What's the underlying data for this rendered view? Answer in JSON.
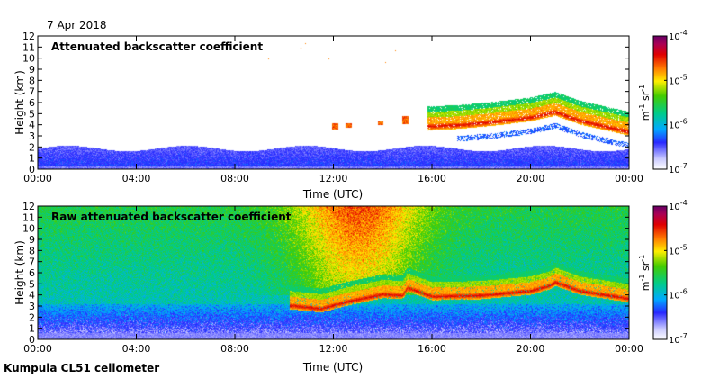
{
  "figure": {
    "date": "7 Apr 2018",
    "footer": "Kumpula CL51 ceilometer"
  },
  "chart_data": [
    {
      "type": "heatmap",
      "title": "Attenuated backscatter coefficient",
      "xlabel": "Time (UTC)",
      "ylabel": "Height (km)",
      "x_ticks": [
        "00:00",
        "04:00",
        "08:00",
        "12:00",
        "16:00",
        "20:00",
        "00:00"
      ],
      "y_ticks": [
        "0",
        "1",
        "2",
        "3",
        "4",
        "5",
        "6",
        "7",
        "8",
        "9",
        "10",
        "11",
        "12"
      ],
      "xlim_hours": [
        0,
        24
      ],
      "ylim_km": [
        0,
        12
      ],
      "colorbar": {
        "scale": "log",
        "min_label": "10-7",
        "max_label": "10-4",
        "tick_labels": [
          "10-7",
          "10-6",
          "10-5",
          "10-4"
        ],
        "unit": "m-1 sr-1"
      },
      "features": [
        {
          "name": "boundary layer aerosol",
          "start_h": 0,
          "end_h": 24,
          "bottom_km": 0,
          "top_km": 1.9,
          "level": "low"
        },
        {
          "name": "isolated cloud traces",
          "start_h": 12,
          "end_h": 15,
          "base_km": 3.5,
          "top_km": 4.7,
          "level": "high"
        },
        {
          "name": "mid-level cloud layer",
          "start_h": 16,
          "end_h": 24,
          "base_km": 3.7,
          "top_km": 6.4,
          "level": "high"
        }
      ]
    },
    {
      "type": "heatmap",
      "title": "Raw attenuated backscatter coefficient",
      "xlabel": "Time (UTC)",
      "ylabel": "Height (km)",
      "x_ticks": [
        "00:00",
        "04:00",
        "08:00",
        "12:00",
        "16:00",
        "20:00",
        "00:00"
      ],
      "y_ticks": [
        "0",
        "1",
        "2",
        "3",
        "4",
        "5",
        "6",
        "7",
        "8",
        "9",
        "10",
        "11",
        "12"
      ],
      "xlim_hours": [
        0,
        24
      ],
      "ylim_km": [
        0,
        12
      ],
      "colorbar": {
        "scale": "log",
        "min_label": "10-7",
        "max_label": "10-4",
        "tick_labels": [
          "10-7",
          "10-6",
          "10-5",
          "10-4"
        ],
        "unit": "m-1 sr-1"
      },
      "features": [
        {
          "name": "noisy background",
          "start_h": 0,
          "end_h": 24,
          "bottom_km": 3,
          "top_km": 12,
          "level": "medium"
        },
        {
          "name": "daytime noise maximum",
          "start_h": 10,
          "end_h": 16,
          "bottom_km": 5,
          "top_km": 12,
          "level": "high"
        },
        {
          "name": "cloud layer",
          "start_h": 10,
          "end_h": 24,
          "base_km": 2.7,
          "top_km": 6.2,
          "level": "high"
        }
      ]
    }
  ]
}
